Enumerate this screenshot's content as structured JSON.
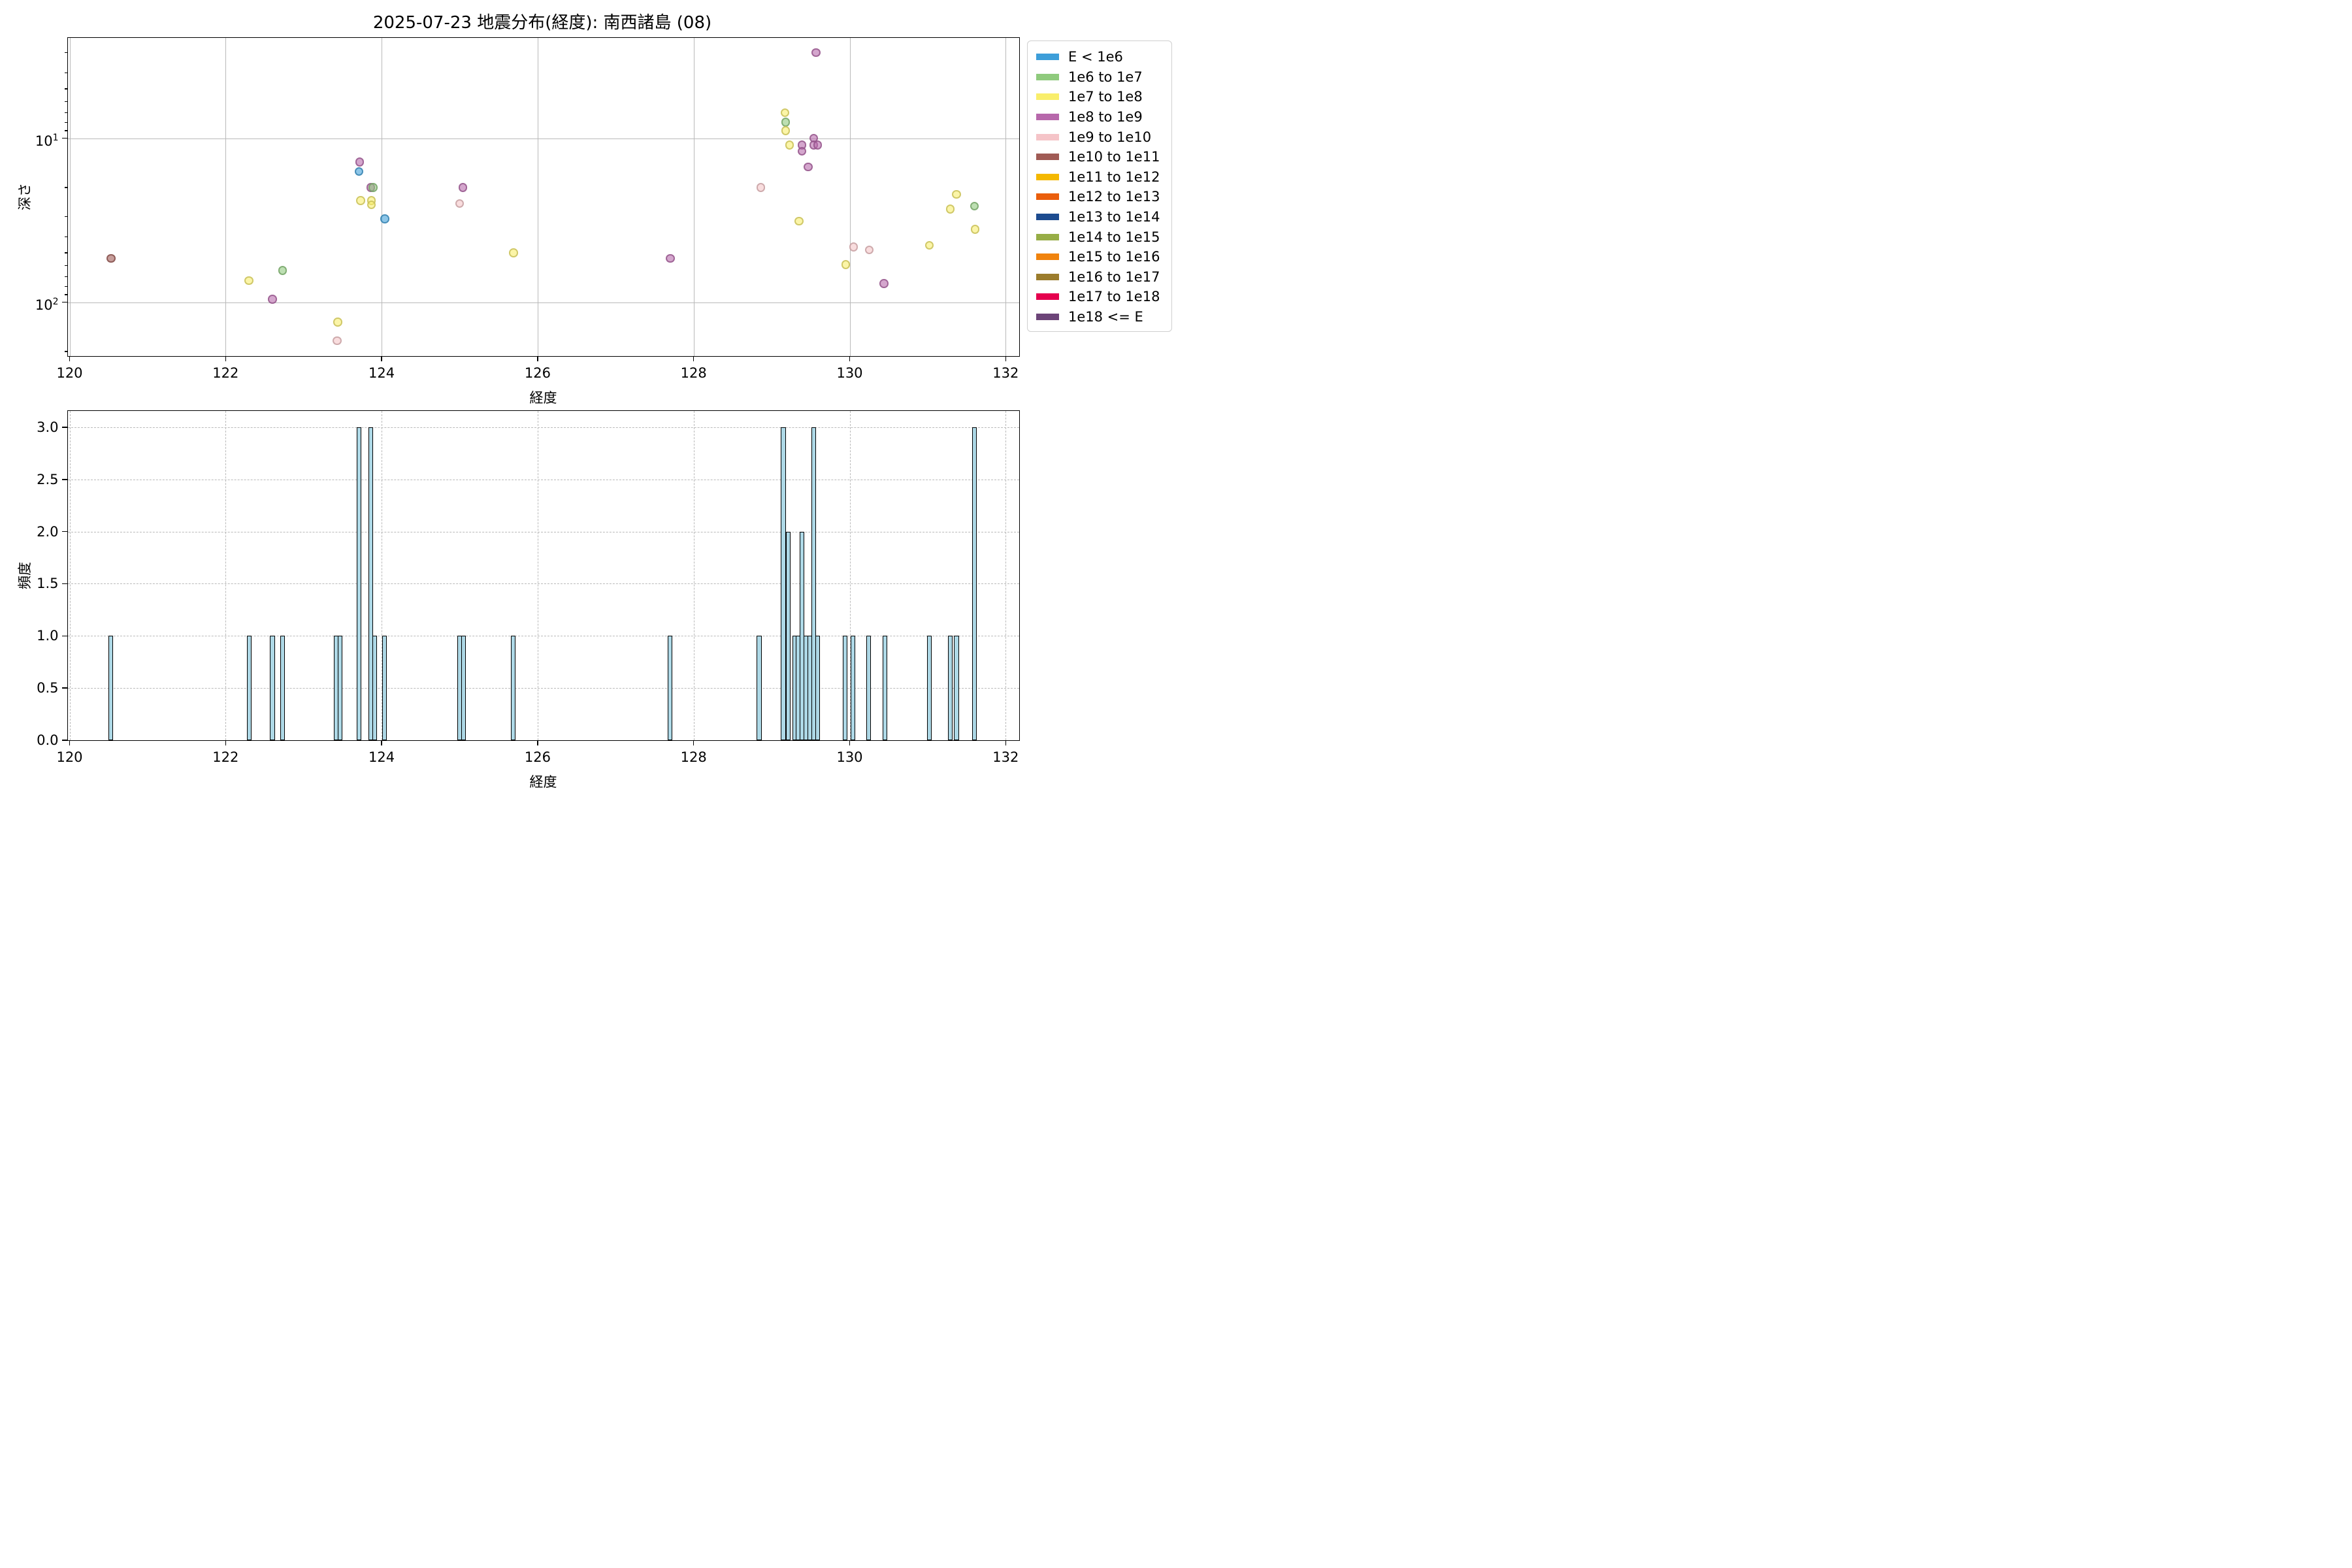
{
  "figure": {
    "title": "2025-07-23 地震分布(経度): 南西諸島 (08)",
    "background": "#ffffff"
  },
  "legend": {
    "items": [
      {
        "label": "E < 1e6",
        "color": "#3d9ed9"
      },
      {
        "label": "1e6 to 1e7",
        "color": "#8fca7d"
      },
      {
        "label": "1e7 to 1e8",
        "color": "#f9ee6b"
      },
      {
        "label": "1e8 to 1e9",
        "color": "#b768ab"
      },
      {
        "label": "1e9 to 1e10",
        "color": "#f5c4c8"
      },
      {
        "label": "1e10 to 1e11",
        "color": "#a05b55"
      },
      {
        "label": "1e11 to 1e12",
        "color": "#f4b800"
      },
      {
        "label": "1e12 to 1e13",
        "color": "#ea5e0c"
      },
      {
        "label": "1e13 to 1e14",
        "color": "#1d4b8f"
      },
      {
        "label": "1e14 to 1e15",
        "color": "#97ad46"
      },
      {
        "label": "1e15 to 1e16",
        "color": "#f0830e"
      },
      {
        "label": "1e16 to 1e17",
        "color": "#9b7c2c"
      },
      {
        "label": "1e17 to 1e18",
        "color": "#e5004e"
      },
      {
        "label": "1e18 <= E",
        "color": "#6c4478"
      }
    ]
  },
  "chart_data": [
    {
      "type": "scatter",
      "title": "2025-07-23 地震分布(経度): 南西諸島 (08)",
      "xlabel": "経度",
      "ylabel": "深さ",
      "yscale": "log-inverted-depth",
      "xlim": [
        119.97,
        132.17
      ],
      "depth_lim": [
        2.43,
        212
      ],
      "xticks": [
        120,
        122,
        124,
        126,
        128,
        130,
        132
      ],
      "ytick_major_depths": [
        10,
        100
      ],
      "ytick_minor_depths": [
        3,
        4,
        5,
        6,
        7,
        8,
        9,
        20,
        30,
        40,
        50,
        60,
        70,
        80,
        90,
        200
      ],
      "grid": "solid",
      "legend_position": "outside-right",
      "points": [
        {
          "lon": 120.53,
          "depth": 54,
          "energy_bin": "1e10 to 1e11"
        },
        {
          "lon": 122.3,
          "depth": 74,
          "energy_bin": "1e7 to 1e8"
        },
        {
          "lon": 122.6,
          "depth": 96,
          "energy_bin": "1e8 to 1e9"
        },
        {
          "lon": 122.73,
          "depth": 64,
          "energy_bin": "1e6 to 1e7"
        },
        {
          "lon": 123.44,
          "depth": 132,
          "energy_bin": "1e7 to 1e8"
        },
        {
          "lon": 123.43,
          "depth": 172,
          "energy_bin": "1e9 to 1e10"
        },
        {
          "lon": 123.72,
          "depth": 14,
          "energy_bin": "1e8 to 1e9"
        },
        {
          "lon": 123.71,
          "depth": 16,
          "energy_bin": "E < 1e6"
        },
        {
          "lon": 123.86,
          "depth": 20,
          "energy_bin": "1e8 to 1e9"
        },
        {
          "lon": 123.89,
          "depth": 20,
          "energy_bin": "1e6 to 1e7"
        },
        {
          "lon": 123.73,
          "depth": 24,
          "energy_bin": "1e7 to 1e8"
        },
        {
          "lon": 123.87,
          "depth": 24,
          "energy_bin": "1e7 to 1e8"
        },
        {
          "lon": 123.87,
          "depth": 25.5,
          "energy_bin": "1e7 to 1e8"
        },
        {
          "lon": 124.04,
          "depth": 31,
          "energy_bin": "E < 1e6"
        },
        {
          "lon": 125.04,
          "depth": 20,
          "energy_bin": "1e8 to 1e9"
        },
        {
          "lon": 125.0,
          "depth": 25,
          "energy_bin": "1e9 to 1e10"
        },
        {
          "lon": 125.69,
          "depth": 50,
          "energy_bin": "1e7 to 1e8"
        },
        {
          "lon": 127.7,
          "depth": 54,
          "energy_bin": "1e8 to 1e9"
        },
        {
          "lon": 128.86,
          "depth": 20,
          "energy_bin": "1e9 to 1e10"
        },
        {
          "lon": 129.57,
          "depth": 3.0,
          "energy_bin": "1e8 to 1e9"
        },
        {
          "lon": 129.17,
          "depth": 7.0,
          "energy_bin": "1e7 to 1e8"
        },
        {
          "lon": 129.18,
          "depth": 8.0,
          "energy_bin": "1e6 to 1e7"
        },
        {
          "lon": 129.18,
          "depth": 9.0,
          "energy_bin": "1e7 to 1e8"
        },
        {
          "lon": 129.54,
          "depth": 10.0,
          "energy_bin": "1e8 to 1e9"
        },
        {
          "lon": 129.23,
          "depth": 11.0,
          "energy_bin": "1e7 to 1e8"
        },
        {
          "lon": 129.39,
          "depth": 11.0,
          "energy_bin": "1e8 to 1e9"
        },
        {
          "lon": 129.54,
          "depth": 11.0,
          "energy_bin": "1e8 to 1e9"
        },
        {
          "lon": 129.59,
          "depth": 11.0,
          "energy_bin": "1e8 to 1e9"
        },
        {
          "lon": 129.39,
          "depth": 12.0,
          "energy_bin": "1e8 to 1e9"
        },
        {
          "lon": 129.47,
          "depth": 15.0,
          "energy_bin": "1e8 to 1e9"
        },
        {
          "lon": 129.35,
          "depth": 32,
          "energy_bin": "1e7 to 1e8"
        },
        {
          "lon": 129.95,
          "depth": 59,
          "energy_bin": "1e7 to 1e8"
        },
        {
          "lon": 130.05,
          "depth": 46,
          "energy_bin": "1e9 to 1e10"
        },
        {
          "lon": 130.25,
          "depth": 48,
          "energy_bin": "1e9 to 1e10"
        },
        {
          "lon": 130.44,
          "depth": 77,
          "energy_bin": "1e8 to 1e9"
        },
        {
          "lon": 131.02,
          "depth": 45,
          "energy_bin": "1e7 to 1e8"
        },
        {
          "lon": 131.37,
          "depth": 22,
          "energy_bin": "1e7 to 1e8"
        },
        {
          "lon": 131.29,
          "depth": 27,
          "energy_bin": "1e7 to 1e8"
        },
        {
          "lon": 131.6,
          "depth": 26,
          "energy_bin": "1e6 to 1e7"
        },
        {
          "lon": 131.61,
          "depth": 36,
          "energy_bin": "1e7 to 1e8"
        }
      ]
    },
    {
      "type": "histogram",
      "xlabel": "経度",
      "ylabel": "頻度",
      "xlim": [
        119.97,
        132.17
      ],
      "ylim": [
        0,
        3.16
      ],
      "xticks": [
        120,
        122,
        124,
        126,
        128,
        130,
        132
      ],
      "yticks": [
        "0.0",
        "0.5",
        "1.0",
        "1.5",
        "2.0",
        "2.5",
        "3.0"
      ],
      "grid": "dashed",
      "bar_color": "#add8e6",
      "bar_edge_color": "#000000",
      "bar_width_deg": 0.046,
      "bars": [
        {
          "lon": 120.53,
          "count": 1
        },
        {
          "lon": 122.3,
          "count": 1
        },
        {
          "lon": 122.6,
          "count": 1
        },
        {
          "lon": 122.73,
          "count": 1
        },
        {
          "lon": 123.42,
          "count": 1
        },
        {
          "lon": 123.47,
          "count": 1
        },
        {
          "lon": 123.71,
          "count": 3
        },
        {
          "lon": 123.86,
          "count": 3
        },
        {
          "lon": 123.91,
          "count": 1
        },
        {
          "lon": 124.04,
          "count": 1
        },
        {
          "lon": 125.0,
          "count": 1
        },
        {
          "lon": 125.05,
          "count": 1
        },
        {
          "lon": 125.69,
          "count": 1
        },
        {
          "lon": 127.7,
          "count": 1
        },
        {
          "lon": 128.84,
          "count": 1
        },
        {
          "lon": 129.15,
          "count": 3
        },
        {
          "lon": 129.21,
          "count": 2
        },
        {
          "lon": 129.3,
          "count": 1
        },
        {
          "lon": 129.34,
          "count": 1
        },
        {
          "lon": 129.39,
          "count": 2
        },
        {
          "lon": 129.44,
          "count": 1
        },
        {
          "lon": 129.49,
          "count": 1
        },
        {
          "lon": 129.54,
          "count": 3
        },
        {
          "lon": 129.59,
          "count": 1
        },
        {
          "lon": 129.94,
          "count": 1
        },
        {
          "lon": 130.04,
          "count": 1
        },
        {
          "lon": 130.24,
          "count": 1
        },
        {
          "lon": 130.45,
          "count": 1
        },
        {
          "lon": 131.02,
          "count": 1
        },
        {
          "lon": 131.29,
          "count": 1
        },
        {
          "lon": 131.37,
          "count": 1
        },
        {
          "lon": 131.6,
          "count": 3
        }
      ]
    }
  ]
}
